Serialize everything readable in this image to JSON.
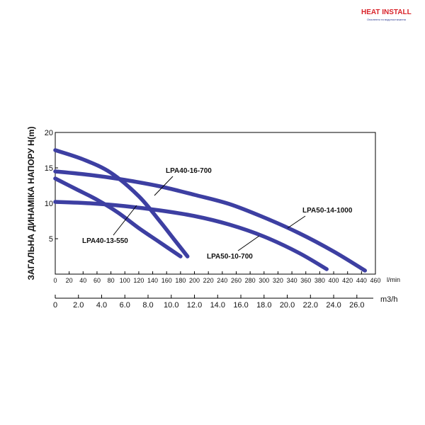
{
  "logo": {
    "brand": "HEAT INSTALL",
    "tagline": "Опалення та водопостачання"
  },
  "chart_data": {
    "type": "line",
    "ylabel": "ЗАГАЛЬНА ДИНАМІКА НАПОРУ H(m)",
    "ylim": [
      0,
      20
    ],
    "yticks": [
      "20",
      "15",
      "10",
      "5"
    ],
    "x_lmin": {
      "ticks": [
        "0",
        "20",
        "40",
        "60",
        "80",
        "100",
        "120",
        "140",
        "160",
        "180",
        "200",
        "220",
        "240",
        "260",
        "280",
        "300",
        "320",
        "340",
        "360",
        "380",
        "400",
        "420",
        "440",
        "460"
      ],
      "unit": "l/min",
      "lim": [
        0,
        460
      ]
    },
    "x_m3h": {
      "ticks": [
        "0",
        "2.0",
        "4.0",
        "6.0",
        "8.0",
        "10.0",
        "12.0",
        "14.0",
        "16.0",
        "18.0",
        "20.0",
        "22.0",
        "24.0",
        "26.0"
      ],
      "unit": "m3/h"
    },
    "grid": false,
    "color": "#3d3fa2",
    "series": [
      {
        "name": "LPA40-16-700",
        "x": [
          0,
          40,
          80,
          120,
          150,
          170,
          190
        ],
        "y": [
          17.5,
          16.2,
          14.3,
          11.0,
          7.5,
          5.0,
          2.5
        ]
      },
      {
        "name": "LPA40-13-550",
        "x": [
          0,
          30,
          60,
          90,
          120,
          150,
          180
        ],
        "y": [
          13.5,
          12.0,
          10.5,
          8.7,
          6.5,
          4.5,
          2.5
        ]
      },
      {
        "name": "LPA50-14-1000",
        "x": [
          0,
          50,
          100,
          150,
          200,
          250,
          300,
          350,
          400,
          445
        ],
        "y": [
          14.5,
          14.0,
          13.3,
          12.4,
          11.2,
          9.9,
          8.0,
          5.8,
          3.2,
          0.5
        ]
      },
      {
        "name": "LPA50-10-700",
        "x": [
          0,
          50,
          100,
          150,
          200,
          250,
          300,
          350,
          390
        ],
        "y": [
          10.2,
          10.0,
          9.6,
          9.0,
          8.2,
          7.0,
          5.3,
          3.0,
          0.7
        ]
      }
    ]
  }
}
